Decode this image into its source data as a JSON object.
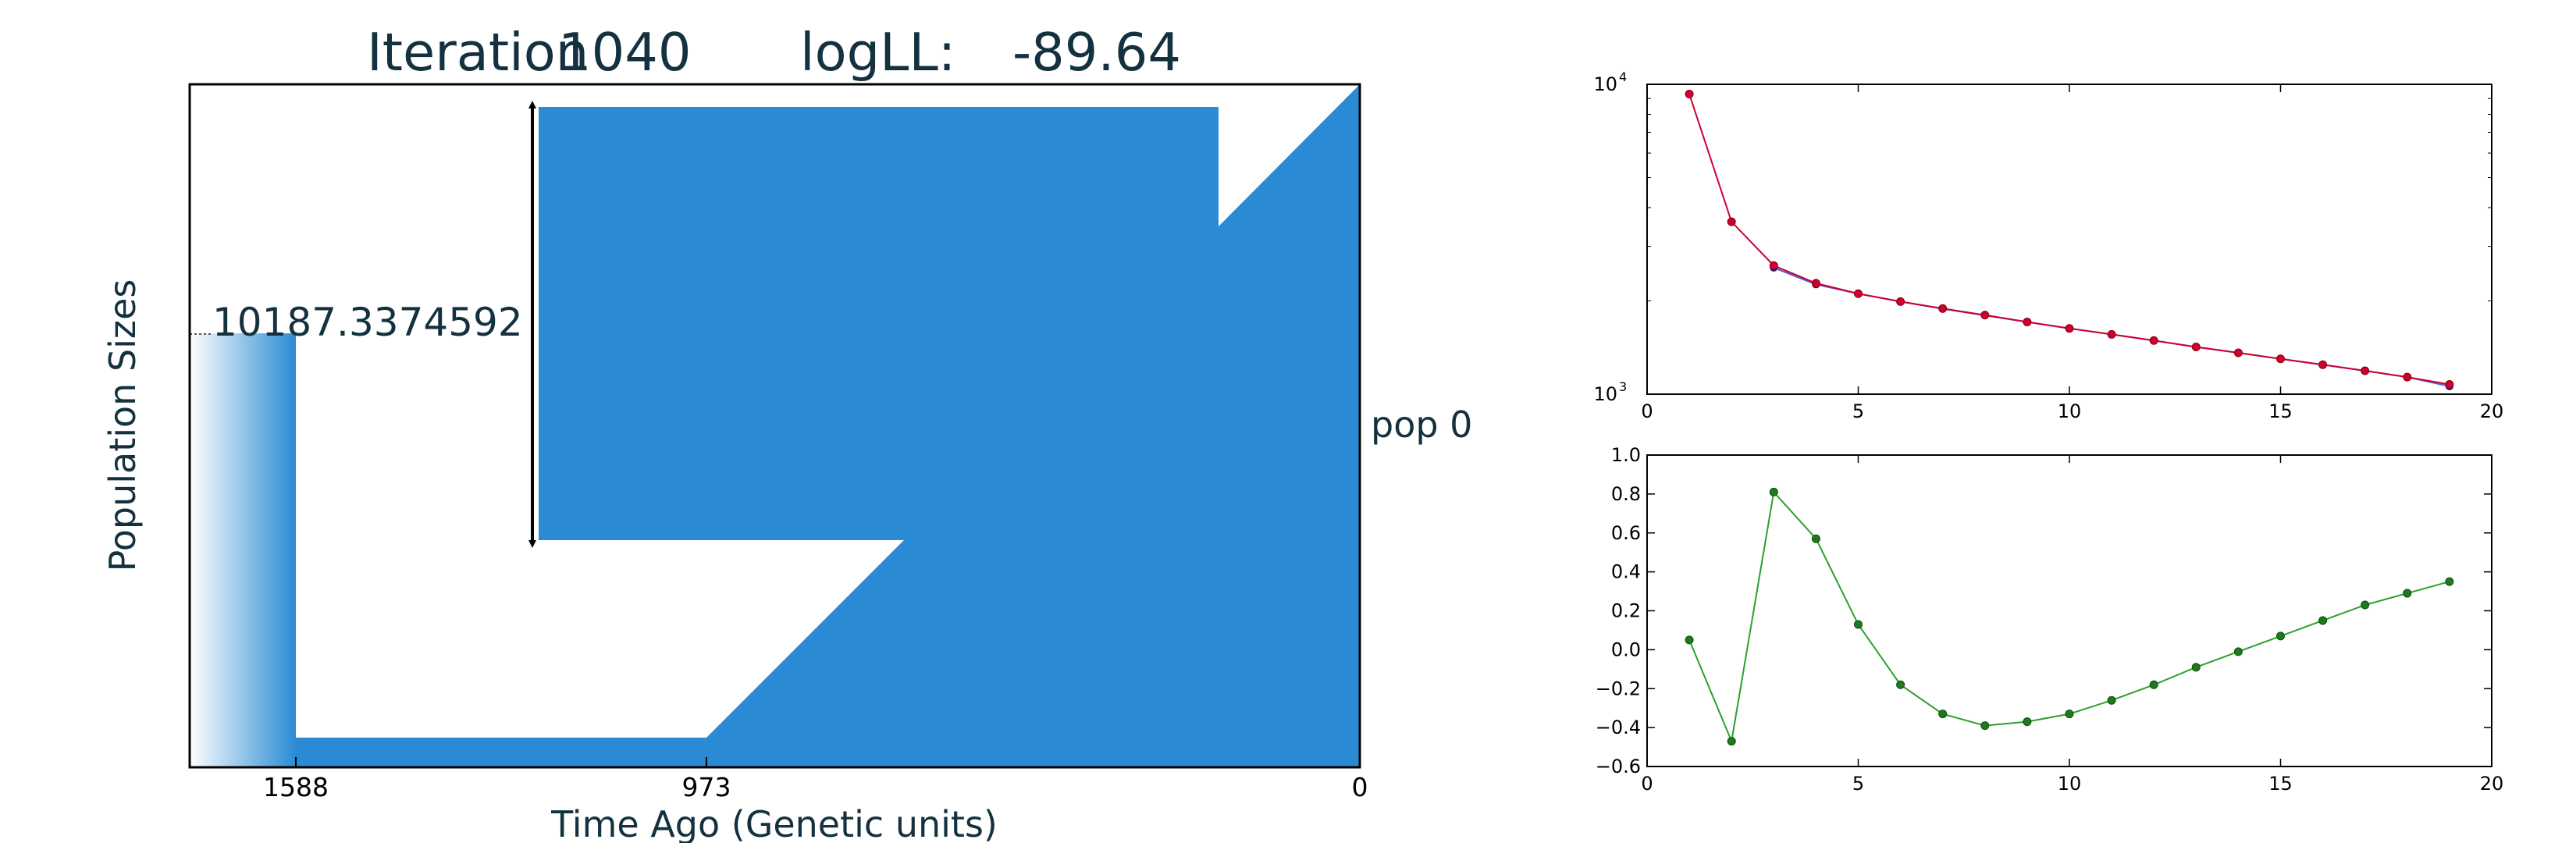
{
  "colors": {
    "text_dark": "#13313f",
    "pop_blue": "#2a8bd4",
    "fit_red": "#cc0033",
    "obs_blue": "#5b5bd6",
    "resid_green": "#2ca02c",
    "point_dark_red": "#8b0000",
    "point_dark_green": "#0b4d0b"
  },
  "chart_data": [
    {
      "type": "area",
      "title_prefix": "Iteration",
      "iteration": "1040",
      "loglik_label": "logLL:",
      "loglik_value": "-89.64",
      "ylabel": "Population Sizes",
      "xlabel": "Time Ago (Genetic units)",
      "x_tick_labels": [
        "1588",
        "973",
        "0"
      ],
      "size_annotation": "10187.3374592",
      "population_label": "pop 0",
      "grid": false
    },
    {
      "type": "line",
      "x_scale": "linear",
      "y_scale": "log",
      "xlim": [
        0,
        20
      ],
      "ylim": [
        1000,
        10000
      ],
      "x_ticks": [
        "0",
        "5",
        "10",
        "15",
        "20"
      ],
      "y_ticks": [
        {
          "base": "10",
          "exp": "4",
          "value": 10000
        },
        {
          "base": "10",
          "exp": "3",
          "value": 1000
        }
      ],
      "grid": false,
      "series": [
        {
          "role": "fitted",
          "x": [
            1,
            2,
            3,
            4,
            5,
            6,
            7,
            8,
            9,
            10,
            11,
            12,
            13,
            14,
            15,
            16,
            17,
            18,
            19
          ],
          "values": [
            9300,
            3600,
            2600,
            2280,
            2110,
            1990,
            1890,
            1800,
            1710,
            1630,
            1560,
            1490,
            1420,
            1360,
            1300,
            1245,
            1190,
            1135,
            1075
          ]
        },
        {
          "role": "observed",
          "x": [
            3,
            4,
            5,
            6,
            7,
            8,
            9,
            10,
            11,
            12,
            13,
            14,
            15,
            16,
            17,
            18,
            19
          ],
          "values": [
            2560,
            2260,
            2110,
            1990,
            1885,
            1795,
            1710,
            1630,
            1560,
            1490,
            1420,
            1360,
            1300,
            1245,
            1190,
            1135,
            1060
          ]
        }
      ]
    },
    {
      "type": "line",
      "xlim": [
        0,
        20
      ],
      "ylim": [
        -0.6,
        1.0
      ],
      "x_ticks": [
        "0",
        "5",
        "10",
        "15",
        "20"
      ],
      "y_ticks": [
        "1.0",
        "0.8",
        "0.6",
        "0.4",
        "0.2",
        "0.0",
        "−0.2",
        "−0.4",
        "−0.6"
      ],
      "grid": false,
      "series": [
        {
          "role": "residual",
          "x": [
            1,
            2,
            3,
            4,
            5,
            6,
            7,
            8,
            9,
            10,
            11,
            12,
            13,
            14,
            15,
            16,
            17,
            18,
            19
          ],
          "values": [
            0.05,
            -0.47,
            0.81,
            0.57,
            0.13,
            -0.18,
            -0.33,
            -0.39,
            -0.37,
            -0.33,
            -0.26,
            -0.18,
            -0.09,
            -0.01,
            0.07,
            0.15,
            0.23,
            0.29,
            0.35
          ]
        }
      ]
    }
  ]
}
